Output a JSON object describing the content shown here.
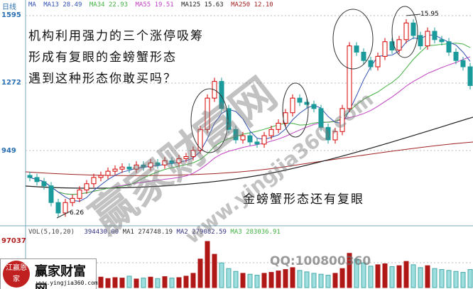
{
  "header": {
    "period": "日线",
    "ma_label": "MA",
    "ma13": "MA13 28.49",
    "ma34": "MA34 22.93",
    "ma55": "MA55 19.51",
    "ma125": "MA125 15.63",
    "ma250": "MA250 12.10"
  },
  "colors": {
    "up": "#d40000",
    "down": "#1a9a9a",
    "ma13": "#3050b0",
    "ma34": "#40b040",
    "ma55": "#c040c0",
    "ma125": "#202020",
    "ma250": "#a02020"
  },
  "annotations": {
    "line1": "机构利用强力的三个涨停吸筹",
    "line2": "形成有复眼的金螃蟹形态",
    "line3": "遇到这种形态你敢买吗？",
    "bottom": "金螃蟹形态还有复眼",
    "low_label": "6.26",
    "high_label": "15.95",
    "qq": "QQ:100800360"
  },
  "volume_header": {
    "label": "VOL(5,10,20)",
    "value": "394430.00",
    "ma1": "MA1 274748.19",
    "ma2": "MA2 279082.59",
    "ma3": "MA3 283036.91"
  },
  "logo": {
    "name": "赢家财富网",
    "url": "www.yingjia360.com",
    "seal": "江赢恩家"
  },
  "watermark": {
    "name": "赢家财富网",
    "url": "www.yingjia360.com"
  },
  "chart_data": {
    "type": "candlestick",
    "y_ticks": [
      "1595",
      "1272",
      "949"
    ],
    "ylim": [
      560,
      1620
    ],
    "volume_tick": "97037",
    "closes": [
      820,
      800,
      780,
      700,
      650,
      700,
      720,
      760,
      790,
      820,
      830,
      850,
      860,
      870,
      860,
      880,
      870,
      890,
      880,
      900,
      890,
      910,
      920,
      950,
      1050,
      1200,
      1280,
      1150,
      1050,
      1000,
      1020,
      990,
      980,
      1020,
      1050,
      1080,
      1130,
      1200,
      1180,
      1170,
      1150,
      1060,
      1000,
      1040,
      1150,
      1450,
      1420,
      1380,
      1350,
      1400,
      1470,
      1430,
      1480,
      1560,
      1500,
      1450,
      1520,
      1480,
      1470,
      1420,
      1380,
      1350,
      1260
    ],
    "volumes": [
      22000,
      18000,
      20000,
      26000,
      24000,
      21000,
      19000,
      23000,
      20000,
      18000,
      22000,
      19000,
      21000,
      20000,
      24000,
      18000,
      20000,
      22000,
      19000,
      23000,
      20000,
      21000,
      24000,
      30000,
      60000,
      97037,
      70000,
      52000,
      40000,
      34000,
      30000,
      28000,
      26000,
      30000,
      32000,
      35000,
      38000,
      42000,
      36000,
      33000,
      30000,
      28000,
      26000,
      30000,
      40000,
      72000,
      60000,
      52000,
      45000,
      48000,
      50000,
      44000,
      46000,
      55000,
      48000,
      42000,
      46000,
      40000,
      38000,
      36000,
      34000,
      32000,
      38000
    ]
  }
}
